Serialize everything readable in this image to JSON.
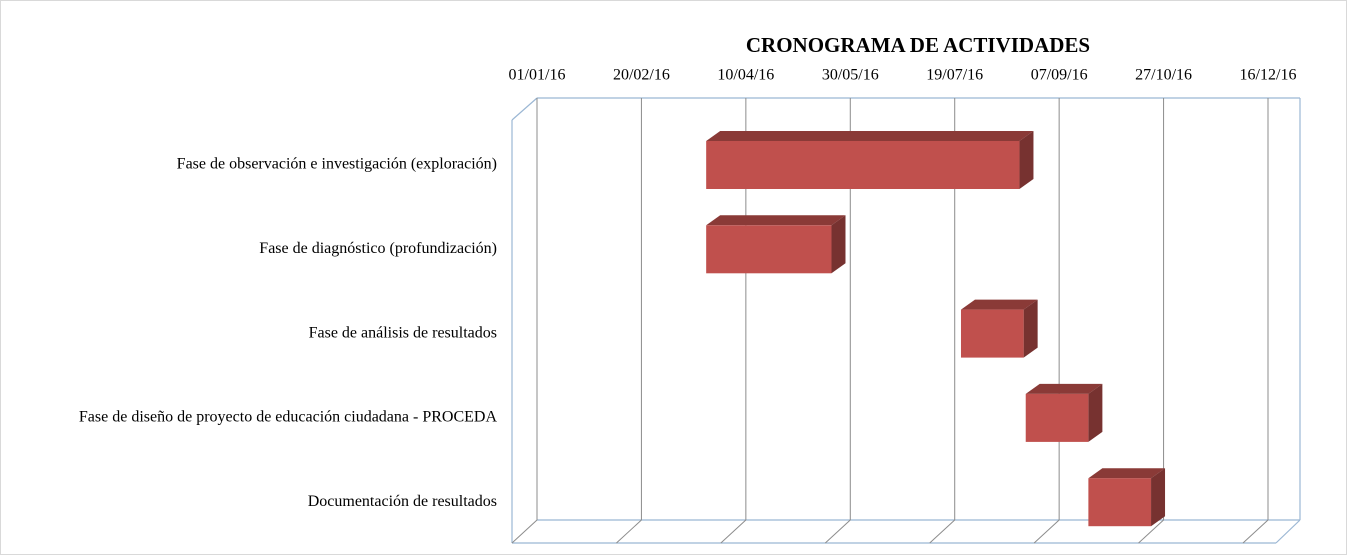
{
  "chart_data": {
    "type": "gantt",
    "title": "CRONOGRAMA DE ACTIVIDADES",
    "categories": [
      "Fase de observación e investigación (exploración)",
      "Fase de diagnóstico (profundización)",
      "Fase de análisis de resultados",
      "Fase de diseño de proyecto de educación ciudadana - PROCEDA",
      "Documentación de resultados"
    ],
    "start": [
      "2016-03-22",
      "2016-03-22",
      "2016-07-22",
      "2016-08-22",
      "2016-09-21"
    ],
    "end": [
      "2016-08-19",
      "2016-05-21",
      "2016-08-21",
      "2016-09-21",
      "2016-10-21"
    ],
    "color": "#c0504d",
    "xlim": [
      "2016-01-01",
      "2016-12-16"
    ],
    "xticks": [
      {
        "value": "2016-01-01",
        "label": "01/01/16"
      },
      {
        "value": "2016-02-20",
        "label": "20/02/16"
      },
      {
        "value": "2016-04-10",
        "label": "10/04/16"
      },
      {
        "value": "2016-05-30",
        "label": "30/05/16"
      },
      {
        "value": "2016-07-19",
        "label": "19/07/16"
      },
      {
        "value": "2016-09-07",
        "label": "07/09/16"
      },
      {
        "value": "2016-10-27",
        "label": "27/10/16"
      },
      {
        "value": "2016-12-16",
        "label": "16/12/16"
      }
    ],
    "grid": true
  }
}
